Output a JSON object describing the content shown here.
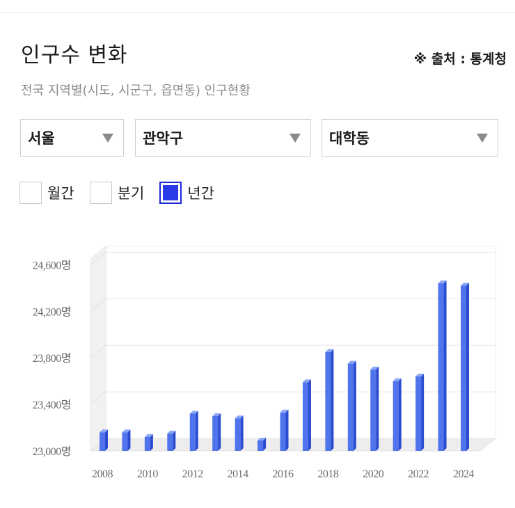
{
  "header": {
    "title": "인구수 변화",
    "source": "※ 출처 : 통계청",
    "subtitle": "전국 지역별(시도, 시군구, 읍면동) 인구현황"
  },
  "selectors": {
    "region": "서울",
    "district": "관악구",
    "dong": "대학동"
  },
  "periods": [
    {
      "label": "월간",
      "checked": false
    },
    {
      "label": "분기",
      "checked": false
    },
    {
      "label": "년간",
      "checked": true
    }
  ],
  "colors": {
    "bar": "#4f74ec",
    "bar_side": "#2b4bd0",
    "bar_top": "#8aa6f6",
    "checkbox_accent": "#2a3be8"
  },
  "chart_data": {
    "type": "bar",
    "categories": [
      "2008",
      "2009",
      "2010",
      "2011",
      "2012",
      "2013",
      "2014",
      "2015",
      "2016",
      "2017",
      "2018",
      "2019",
      "2020",
      "2021",
      "2022",
      "2023",
      "2024"
    ],
    "values": [
      23160,
      23160,
      23120,
      23150,
      23320,
      23300,
      23280,
      23090,
      23330,
      23590,
      23850,
      23750,
      23700,
      23600,
      23640,
      24440,
      24420
    ],
    "x_tick_labels": [
      "2008",
      "2010",
      "2012",
      "2014",
      "2016",
      "2018",
      "2020",
      "2022",
      "2024"
    ],
    "y_tick_labels": [
      "23,000명",
      "23,400명",
      "23,800명",
      "24,200명",
      "24,600명"
    ],
    "y_ticks": [
      23000,
      23400,
      23800,
      24200,
      24600
    ],
    "ylim": [
      23000,
      24650
    ],
    "grid": true,
    "legend": "none"
  }
}
